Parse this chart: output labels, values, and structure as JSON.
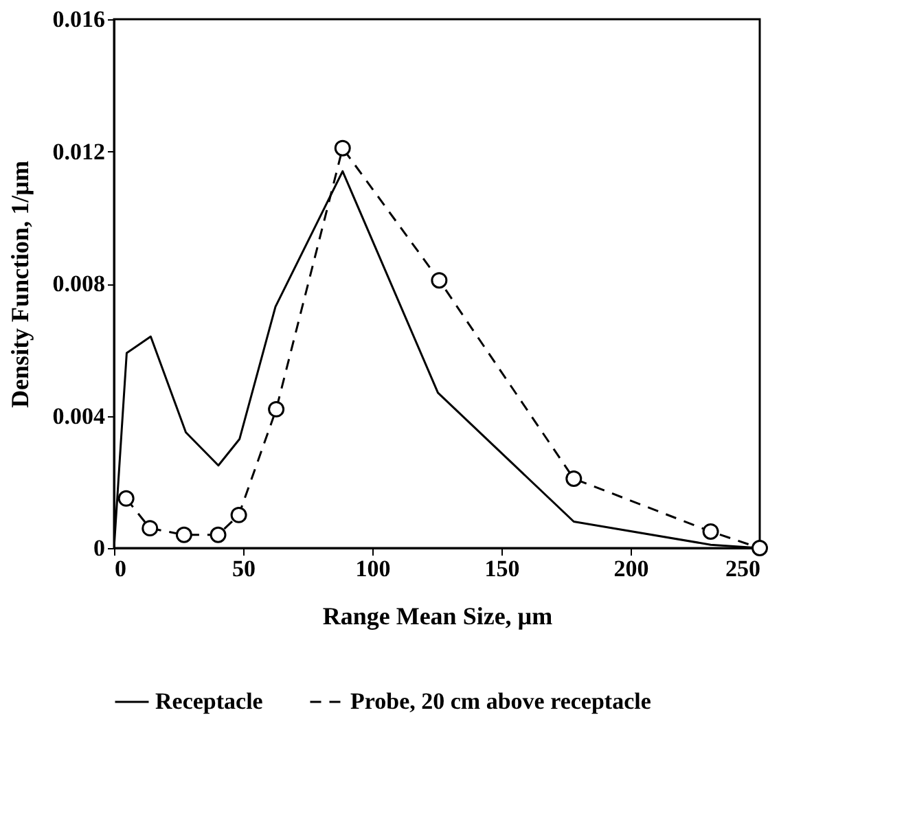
{
  "chart_data": {
    "type": "line",
    "xlabel": "Range Mean Size, µm",
    "ylabel": "Density Function, 1/µm",
    "xlim": [
      0,
      250
    ],
    "xticks": [
      0,
      50,
      100,
      150,
      200,
      250
    ],
    "ylim": [
      0,
      0.016
    ],
    "yticks": [
      0,
      0.004,
      0.008,
      0.012,
      0.016
    ],
    "grid": false,
    "legend": "bottom",
    "series": [
      {
        "name": "Receptacle",
        "color": "#000000",
        "marker": "none",
        "line_style": "solid",
        "x": [
          0,
          4.9,
          14.2,
          27.8,
          40.4,
          48.6,
          62.5,
          88.5,
          125.4,
          178,
          231,
          250
        ],
        "values": [
          0,
          0.0059,
          0.0064,
          0.0035,
          0.0025,
          0.0033,
          0.0073,
          0.0114,
          0.0047,
          0.0008,
          0.0001,
          0
        ]
      },
      {
        "name": "Probe, 20 cm above receptacle",
        "color": "#000000",
        "marker": "circle",
        "line_style": "dashed",
        "x": [
          4.7,
          13.9,
          27.1,
          40.3,
          48.3,
          62.8,
          88.5,
          125.9,
          178,
          231,
          250
        ],
        "values": [
          0.0015,
          0.0006,
          0.0004,
          0.0004,
          0.001,
          0.0042,
          0.0121,
          0.0081,
          0.0021,
          0.0005,
          0
        ]
      }
    ]
  }
}
